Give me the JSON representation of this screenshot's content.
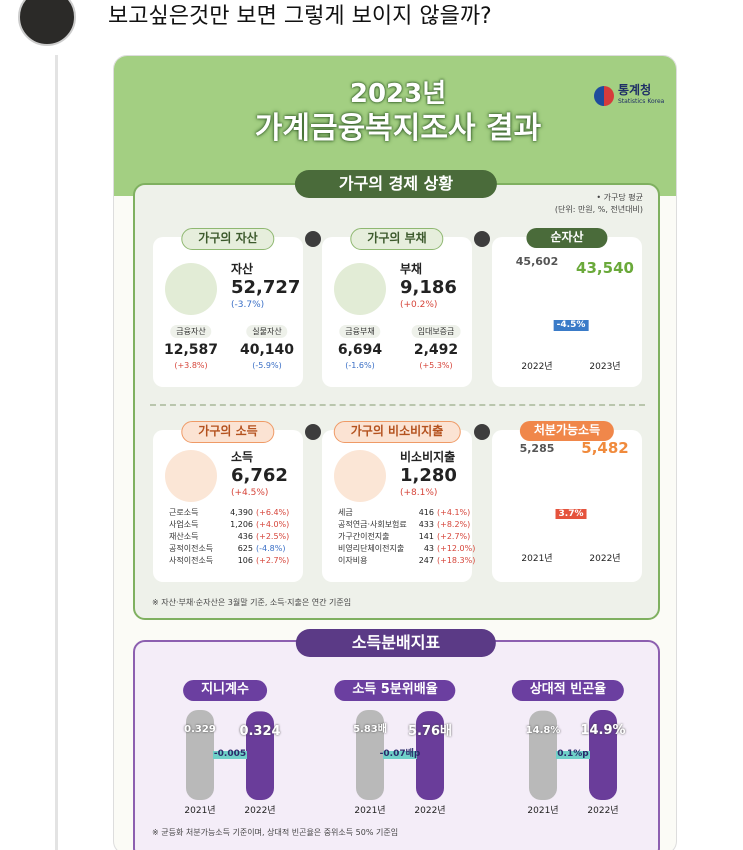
{
  "post": {
    "text": "보고싶은것만 보면 그렇게 보이지 않을까?"
  },
  "infographic": {
    "year": "2023년",
    "title": "가계금융복지조사 결과",
    "agency": "통계청",
    "agency_en": "Statistics Korea",
    "section1": {
      "title": "가구의 경제 상황",
      "unit_note1": "• 가구당 평균",
      "unit_note2": "(단위: 만원, %, 전년대비)",
      "assets": {
        "label": "가구의 자산",
        "name": "자산",
        "value": "52,727",
        "change": "(-3.7%)",
        "items": [
          {
            "name": "금융자산",
            "value": "12,587",
            "change": "(+3.8%)"
          },
          {
            "name": "실물자산",
            "value": "40,140",
            "change": "(-5.9%)"
          }
        ]
      },
      "debt": {
        "label": "가구의 부채",
        "name": "부채",
        "value": "9,186",
        "change": "(+0.2%)",
        "items": [
          {
            "name": "금융부채",
            "value": "6,694",
            "change": "(-1.6%)"
          },
          {
            "name": "임대보증금",
            "value": "2,492",
            "change": "(+5.3%)"
          }
        ]
      },
      "net_assets": {
        "label": "순자산",
        "change": "-4.5%",
        "bars": [
          {
            "year": "2022년",
            "value": {
              "value": 45602,
              "label": "45,602"
            }
          },
          {
            "year": "2023년",
            "value": {
              "value": 43540,
              "label": "43,540"
            }
          }
        ]
      },
      "income": {
        "label": "가구의 소득",
        "name": "소득",
        "value": "6,762",
        "change": "(+4.5%)",
        "items": [
          {
            "name": "근로소득",
            "value": "4,390",
            "change": "(+6.4%)"
          },
          {
            "name": "사업소득",
            "value": "1,206",
            "change": "(+4.0%)"
          },
          {
            "name": "재산소득",
            "value": "436",
            "change": "(+2.5%)"
          },
          {
            "name": "공적이전소득",
            "value": "625",
            "change": "(-4.8%)"
          },
          {
            "name": "사적이전소득",
            "value": "106",
            "change": "(+2.7%)"
          }
        ]
      },
      "non_consumption": {
        "label": "가구의 비소비지출",
        "name": "비소비지출",
        "value": "1,280",
        "change": "(+8.1%)",
        "items": [
          {
            "name": "세금",
            "value": "416",
            "change": "(+4.1%)"
          },
          {
            "name": "공적연금·사회보험료",
            "value": "433",
            "change": "(+8.2%)"
          },
          {
            "name": "가구간이전지출",
            "value": "141",
            "change": "(+2.7%)"
          },
          {
            "name": "비영리단체이전지출",
            "value": "43",
            "change": "(+12.0%)"
          },
          {
            "name": "이자비용",
            "value": "247",
            "change": "(+18.3%)"
          }
        ]
      },
      "disposable": {
        "label": "처분가능소득",
        "change": "3.7%",
        "bars": [
          {
            "year": "2021년",
            "value": {
              "value": 5285,
              "label": "5,285"
            }
          },
          {
            "year": "2022년",
            "value": {
              "value": 5482,
              "label": "5,482"
            }
          }
        ]
      },
      "footnote": "※ 자산·부채·순자산은 3월말 기준, 소득·지출은 연간 기준임"
    },
    "section2": {
      "title": "소득분배지표",
      "indicators": [
        {
          "label": "지니계수",
          "change": "-0.005",
          "bars": [
            {
              "year": "2021년",
              "value": {
                "value": 0.329,
                "label": "0.329"
              }
            },
            {
              "year": "2022년",
              "value": {
                "value": 0.324,
                "label": "0.324"
              }
            }
          ]
        },
        {
          "label": "소득 5분위배율",
          "change": "-0.07배p",
          "bars": [
            {
              "year": "2021년",
              "value": {
                "value": 5.83,
                "label": "5.83배"
              }
            },
            {
              "year": "2022년",
              "value": {
                "value": 5.76,
                "label": "5.76배"
              }
            }
          ]
        },
        {
          "label": "상대적 빈곤율",
          "change": "0.1%p",
          "bars": [
            {
              "year": "2021년",
              "value": {
                "value": 14.8,
                "label": "14.8%"
              }
            },
            {
              "year": "2022년",
              "value": {
                "value": 14.9,
                "label": "14.9%"
              }
            }
          ]
        }
      ],
      "footnote": "※ 균등화 처분가능소득 기준이며, 상대적 빈곤율은 중위소득 50% 기준임"
    }
  }
}
